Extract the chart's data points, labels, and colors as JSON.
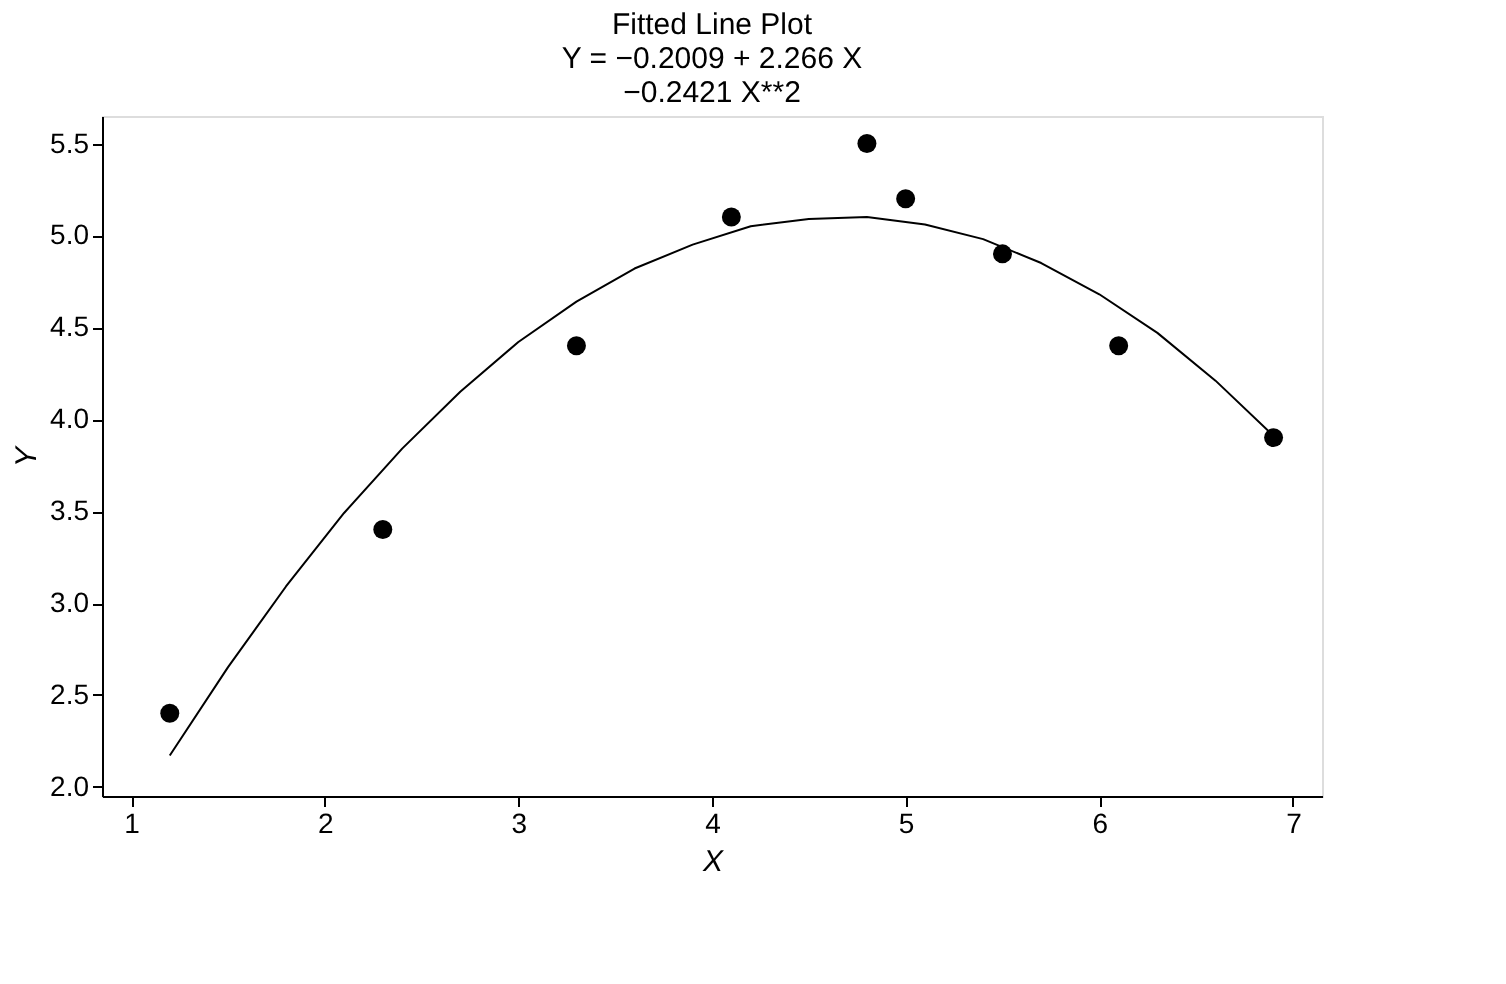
{
  "chart_data": {
    "type": "scatter",
    "title": [
      "Fitted Line Plot",
      "Y = −0.2009 + 2.266 X",
      "−0.2421 X**2"
    ],
    "xlabel": "X",
    "ylabel": "Y",
    "xlim": [
      0.85,
      7.15
    ],
    "ylim": [
      1.95,
      5.65
    ],
    "xticks": [
      1,
      2,
      3,
      4,
      5,
      6,
      7
    ],
    "yticks": [
      {
        "value": 2,
        "label": "2.0"
      },
      {
        "value": 2.5,
        "label": "2.5"
      },
      {
        "value": 3,
        "label": "3.0"
      },
      {
        "value": 3.5,
        "label": "3.5"
      },
      {
        "value": 4,
        "label": "4.0"
      },
      {
        "value": 4.5,
        "label": "4.5"
      },
      {
        "value": 5,
        "label": "5.0"
      },
      {
        "value": 5.5,
        "label": "5.5"
      }
    ],
    "grid": false,
    "series": [
      {
        "type": "scatter",
        "color": "#000000",
        "marker": "circle",
        "x": [
          1.2,
          2.3,
          3.3,
          4.1,
          4.8,
          5.0,
          5.5,
          6.1,
          6.9
        ],
        "values": [
          2.4,
          3.4,
          4.4,
          5.1,
          5.5,
          5.2,
          4.9,
          4.4,
          3.9
        ]
      },
      {
        "type": "line",
        "color": "#000000",
        "line_style": "solid",
        "marker": "none",
        "x": [
          1.2,
          1.5,
          1.8,
          2.1,
          2.4,
          2.7,
          3.0,
          3.3,
          3.6,
          3.9,
          4.2,
          4.5,
          4.8,
          5.1,
          5.4,
          5.7,
          6.0,
          6.3,
          6.6,
          6.9
        ],
        "values": [
          2.17,
          2.65,
          3.09,
          3.49,
          3.84,
          4.15,
          4.42,
          4.64,
          4.82,
          4.95,
          5.05,
          5.09,
          5.1,
          5.06,
          4.98,
          4.85,
          4.68,
          4.47,
          4.21,
          3.91
        ]
      }
    ]
  }
}
